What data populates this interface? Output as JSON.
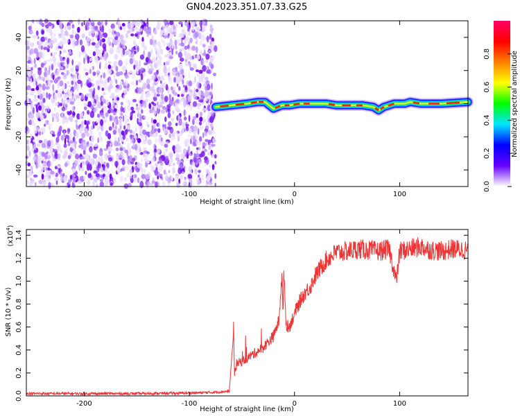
{
  "title": "GN04.2023.351.07.33.G25",
  "chart_data": [
    {
      "type": "heatmap",
      "xlabel": "Height of straight line (km)",
      "ylabel": "Frequency (Hz)",
      "xlim": [
        -255,
        165
      ],
      "ylim": [
        -50,
        50
      ],
      "xticks": [
        -200,
        -100,
        0,
        100
      ],
      "yticks": [
        -40,
        -20,
        0,
        20,
        40
      ],
      "noise_region_x": [
        -255,
        -75
      ],
      "signal_region_x": [
        -75,
        165
      ],
      "signal_track": [
        [
          -75,
          -2
        ],
        [
          -60,
          -1
        ],
        [
          -45,
          0
        ],
        [
          -35,
          1
        ],
        [
          -28,
          1
        ],
        [
          -20,
          -3
        ],
        [
          -12,
          -1
        ],
        [
          -5,
          -1
        ],
        [
          5,
          0
        ],
        [
          15,
          0
        ],
        [
          30,
          0
        ],
        [
          40,
          -1
        ],
        [
          55,
          -1
        ],
        [
          65,
          -1
        ],
        [
          75,
          -2
        ],
        [
          80,
          -4
        ],
        [
          85,
          -2
        ],
        [
          95,
          0
        ],
        [
          105,
          0
        ],
        [
          110,
          1
        ],
        [
          120,
          0
        ],
        [
          140,
          0
        ],
        [
          165,
          1
        ]
      ],
      "colorbar": {
        "label": "Normalized spectral amplitude",
        "ticks": [
          "0.0",
          "0.2",
          "0.4",
          "0.6",
          "0.8"
        ],
        "range": [
          0,
          1
        ],
        "colors": [
          "#ffffff",
          "#6600ff",
          "#0000ff",
          "#00e5ff",
          "#00ff00",
          "#ffff00",
          "#ff7f00",
          "#ff0000",
          "#ff0066"
        ]
      }
    },
    {
      "type": "line",
      "xlabel": "Height of straight line (km)",
      "ylabel": "SNR (10 * v/v)",
      "exponent_label": "(x10",
      "exponent_power": "4",
      "exponent_close": ")",
      "xlim": [
        -255,
        165
      ],
      "ylim": [
        0,
        1.45
      ],
      "xticks": [
        -200,
        -100,
        0,
        100
      ],
      "yticks": [
        "0.0",
        "0.2",
        "0.4",
        "0.6",
        "0.8",
        "1.0",
        "1.2",
        "1.4"
      ],
      "color": "#ee3333",
      "series": [
        {
          "x": [
            -255,
            -200,
            -150,
            -100,
            -80,
            -62,
            -58,
            -57,
            -55,
            -50,
            -40,
            -30,
            -20,
            -15,
            -12,
            -11,
            -10,
            -8,
            -5,
            0,
            5,
            10,
            15,
            20,
            25,
            30,
            35,
            40,
            50,
            60,
            70,
            80,
            90,
            97,
            100,
            110,
            120,
            130,
            140,
            150,
            165
          ],
          "y": [
            0.02,
            0.02,
            0.02,
            0.025,
            0.03,
            0.04,
            0.55,
            0.2,
            0.28,
            0.3,
            0.36,
            0.42,
            0.52,
            0.65,
            1.05,
            0.7,
            1.1,
            0.62,
            0.6,
            0.72,
            0.82,
            0.9,
            0.95,
            1.05,
            1.12,
            1.18,
            1.22,
            1.25,
            1.26,
            1.28,
            1.27,
            1.26,
            1.28,
            1.0,
            1.26,
            1.28,
            1.3,
            1.27,
            1.26,
            1.28,
            1.27
          ]
        }
      ]
    }
  ]
}
